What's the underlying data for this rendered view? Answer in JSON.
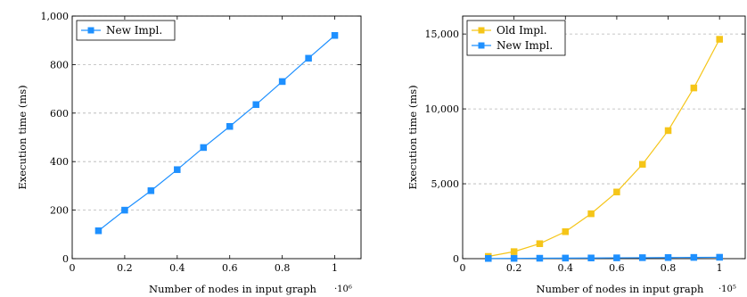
{
  "chart_data": [
    {
      "type": "line",
      "xlabel": "Number of nodes in input graph",
      "x_exponent": "·10⁶",
      "ylabel": "Execution time (ms)",
      "xlim": [
        0,
        1.1
      ],
      "ylim": [
        0,
        1000
      ],
      "xticks": [
        0,
        0.2,
        0.4,
        0.6,
        0.8,
        1
      ],
      "xtick_labels": [
        "0",
        "0.2",
        "0.4",
        "0.6",
        "0.8",
        "1"
      ],
      "yticks": [
        0,
        200,
        400,
        600,
        800,
        1000
      ],
      "ytick_labels": [
        "0",
        "200",
        "400",
        "600",
        "800",
        "1,000"
      ],
      "grid": "horizontal dashed",
      "legend_position": "top-left",
      "x": [
        0.1,
        0.2,
        0.3,
        0.4,
        0.5,
        0.6,
        0.7,
        0.8,
        0.9,
        1.0
      ],
      "series": [
        {
          "name": "New Impl.",
          "color": "#1e90ff",
          "values": [
            115,
            200,
            280,
            367,
            458,
            545,
            635,
            730,
            826,
            920
          ]
        }
      ]
    },
    {
      "type": "line",
      "xlabel": "Number of nodes in input graph",
      "x_exponent": "·10⁵",
      "ylabel": "Execution time (ms)",
      "xlim": [
        0,
        1.1
      ],
      "ylim": [
        0,
        16200
      ],
      "xticks": [
        0,
        0.2,
        0.4,
        0.6,
        0.8,
        1
      ],
      "xtick_labels": [
        "0",
        "0.2",
        "0.4",
        "0.6",
        "0.8",
        "1"
      ],
      "yticks": [
        0,
        5000,
        10000,
        15000
      ],
      "ytick_labels": [
        "0",
        "5,000",
        "10,000",
        "15,000"
      ],
      "grid": "horizontal dashed",
      "legend_position": "top-left",
      "x": [
        0.1,
        0.2,
        0.3,
        0.4,
        0.5,
        0.6,
        0.7,
        0.8,
        0.9,
        1.0
      ],
      "series": [
        {
          "name": "Old Impl.",
          "color": "#f5c518",
          "values": [
            150,
            470,
            1000,
            1800,
            3000,
            4450,
            6300,
            8550,
            11400,
            14650
          ]
        },
        {
          "name": "New Impl.",
          "color": "#1e90ff",
          "values": [
            12,
            20,
            28,
            37,
            46,
            55,
            64,
            73,
            83,
            92
          ]
        }
      ]
    }
  ]
}
